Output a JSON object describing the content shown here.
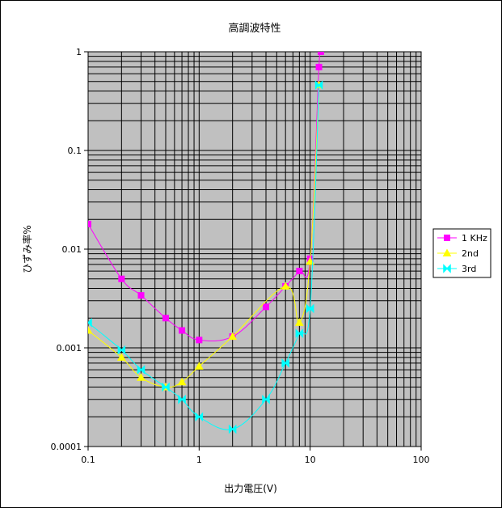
{
  "chart_data": {
    "type": "line",
    "title": "高調波特性",
    "xlabel": "出力電圧(V)",
    "ylabel": "ひずみ率%",
    "x_scale": "log",
    "y_scale": "log",
    "xlim": [
      0.1,
      100
    ],
    "ylim": [
      0.0001,
      1
    ],
    "x_tick_labels": [
      "0.1",
      "1",
      "10",
      "100"
    ],
    "y_tick_labels": [
      "0.0001",
      "0.001",
      "0.01",
      "0.1",
      "1"
    ],
    "grid": true,
    "plot_background": "#c0c0c0",
    "legend_position": "right",
    "series": [
      {
        "name": "1 KHz",
        "color": "#ff00ff",
        "marker": "square",
        "x": [
          0.1,
          0.2,
          0.3,
          0.5,
          0.7,
          1.0,
          2.0,
          4.0,
          6.0,
          8.0,
          10.0,
          12.0,
          12.5
        ],
        "y": [
          0.018,
          0.005,
          0.0034,
          0.002,
          0.0015,
          0.0012,
          0.0013,
          0.0026,
          0.0042,
          0.006,
          0.008,
          0.7,
          1.0
        ]
      },
      {
        "name": "2nd",
        "color": "#ffff00",
        "marker": "triangle",
        "x": [
          0.1,
          0.2,
          0.3,
          0.5,
          0.7,
          1.0,
          2.0,
          6.0,
          8.0,
          10.0,
          12.0
        ],
        "y": [
          0.0015,
          0.0008,
          0.0005,
          0.0004,
          0.00045,
          0.00065,
          0.0013,
          0.0042,
          0.0018,
          0.0075,
          0.46
        ]
      },
      {
        "name": "3rd",
        "color": "#00ffff",
        "marker": "bowtie",
        "x": [
          0.1,
          0.2,
          0.3,
          0.5,
          0.7,
          1.0,
          2.0,
          4.0,
          6.0,
          8.0,
          10.0,
          12.0
        ],
        "y": [
          0.0018,
          0.00095,
          0.0006,
          0.0004,
          0.0003,
          0.0002,
          0.00015,
          0.0003,
          0.0007,
          0.0014,
          0.0025,
          0.46
        ]
      }
    ]
  }
}
